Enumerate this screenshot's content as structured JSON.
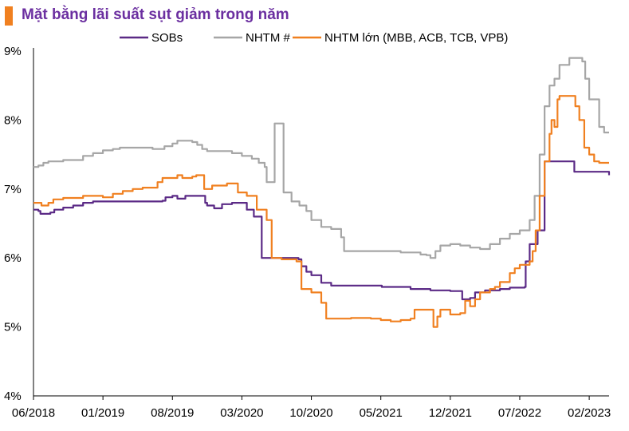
{
  "header": {
    "title": "Mặt bằng lãi suất sụt giảm trong năm",
    "accent_color": "#f08020"
  },
  "chart_data": {
    "type": "line",
    "title": "Mặt bằng lãi suất sụt giảm trong năm",
    "xlabel": "",
    "ylabel": "",
    "ylim": [
      4,
      9
    ],
    "y_ticks": [
      "4%",
      "5%",
      "6%",
      "7%",
      "8%",
      "9%"
    ],
    "x_ticks": [
      "06/2018",
      "01/2019",
      "08/2019",
      "03/2020",
      "10/2020",
      "05/2021",
      "12/2021",
      "07/2022",
      "02/2023"
    ],
    "x_range": [
      0,
      58
    ],
    "grid": false,
    "legend_position": "top",
    "series": [
      {
        "name": "SOBs",
        "color": "#5b2a86",
        "points": [
          [
            0,
            6.7
          ],
          [
            0.5,
            6.68
          ],
          [
            0.7,
            6.64
          ],
          [
            1.7,
            6.66
          ],
          [
            2.1,
            6.7
          ],
          [
            3.0,
            6.73
          ],
          [
            4.0,
            6.76
          ],
          [
            5.0,
            6.8
          ],
          [
            6.0,
            6.82
          ],
          [
            7.0,
            6.82
          ],
          [
            10.0,
            6.82
          ],
          [
            13.0,
            6.83
          ],
          [
            13.3,
            6.88
          ],
          [
            14.0,
            6.9
          ],
          [
            14.5,
            6.86
          ],
          [
            15.3,
            6.9
          ],
          [
            16.8,
            6.9
          ],
          [
            17.3,
            6.8
          ],
          [
            17.5,
            6.76
          ],
          [
            18.2,
            6.72
          ],
          [
            19.0,
            6.78
          ],
          [
            20.0,
            6.8
          ],
          [
            21.0,
            6.8
          ],
          [
            21.5,
            6.7
          ],
          [
            22.2,
            6.6
          ],
          [
            23.0,
            6.0
          ],
          [
            25.6,
            6.0
          ],
          [
            26.7,
            5.98
          ],
          [
            27.0,
            5.88
          ],
          [
            27.5,
            5.8
          ],
          [
            28.0,
            5.75
          ],
          [
            29.0,
            5.64
          ],
          [
            30.0,
            5.6
          ],
          [
            33.0,
            5.6
          ],
          [
            35.0,
            5.6
          ],
          [
            35.1,
            5.58
          ],
          [
            38.0,
            5.55
          ],
          [
            40.0,
            5.53
          ],
          [
            42.0,
            5.52
          ],
          [
            43.0,
            5.52
          ],
          [
            43.2,
            5.4
          ],
          [
            44.0,
            5.42
          ],
          [
            44.5,
            5.5
          ],
          [
            45.5,
            5.53
          ],
          [
            47.0,
            5.55
          ],
          [
            48.0,
            5.57
          ],
          [
            49.5,
            5.58
          ],
          [
            49.6,
            5.95
          ],
          [
            50.0,
            6.2
          ],
          [
            50.8,
            6.4
          ],
          [
            51.5,
            7.4
          ],
          [
            54.0,
            7.4
          ],
          [
            54.5,
            7.25
          ],
          [
            58,
            7.2
          ]
        ]
      },
      {
        "name": "NHTM #",
        "color": "#a6a6a6",
        "points": [
          [
            0,
            7.32
          ],
          [
            0.5,
            7.34
          ],
          [
            1.0,
            7.38
          ],
          [
            1.5,
            7.4
          ],
          [
            3.0,
            7.42
          ],
          [
            5.0,
            7.48
          ],
          [
            6.0,
            7.52
          ],
          [
            7.0,
            7.56
          ],
          [
            8.0,
            7.58
          ],
          [
            8.7,
            7.6
          ],
          [
            12.0,
            7.58
          ],
          [
            13.0,
            7.58
          ],
          [
            13.2,
            7.62
          ],
          [
            14.0,
            7.66
          ],
          [
            14.5,
            7.7
          ],
          [
            16.0,
            7.68
          ],
          [
            16.5,
            7.64
          ],
          [
            17.0,
            7.58
          ],
          [
            17.5,
            7.55
          ],
          [
            20.0,
            7.52
          ],
          [
            21.0,
            7.48
          ],
          [
            22.0,
            7.44
          ],
          [
            22.7,
            7.38
          ],
          [
            23.3,
            7.32
          ],
          [
            23.5,
            7.1
          ],
          [
            24.0,
            7.1
          ],
          [
            24.3,
            7.95
          ],
          [
            25.0,
            7.95
          ],
          [
            25.2,
            6.95
          ],
          [
            26.0,
            6.82
          ],
          [
            26.8,
            6.76
          ],
          [
            27.5,
            6.68
          ],
          [
            28.0,
            6.55
          ],
          [
            29.0,
            6.45
          ],
          [
            30.0,
            6.42
          ],
          [
            31.0,
            6.3
          ],
          [
            31.3,
            6.1
          ],
          [
            33.0,
            6.1
          ],
          [
            35.0,
            6.1
          ],
          [
            37.0,
            6.08
          ],
          [
            39.0,
            6.05
          ],
          [
            39.6,
            6.04
          ],
          [
            40.0,
            6.0
          ],
          [
            40.5,
            6.1
          ],
          [
            41.0,
            6.18
          ],
          [
            42.0,
            6.2
          ],
          [
            43.0,
            6.18
          ],
          [
            44.0,
            6.15
          ],
          [
            45.0,
            6.13
          ],
          [
            46.0,
            6.2
          ],
          [
            47.0,
            6.28
          ],
          [
            48.0,
            6.35
          ],
          [
            49.0,
            6.4
          ],
          [
            50.0,
            6.55
          ],
          [
            50.5,
            6.9
          ],
          [
            51.0,
            7.5
          ],
          [
            51.5,
            8.2
          ],
          [
            52.0,
            8.5
          ],
          [
            52.5,
            8.6
          ],
          [
            53.0,
            8.8
          ],
          [
            54.0,
            8.9
          ],
          [
            55.0,
            8.9
          ],
          [
            55.3,
            8.85
          ],
          [
            55.6,
            8.6
          ],
          [
            56.0,
            8.3
          ],
          [
            57.0,
            7.9
          ],
          [
            57.5,
            7.82
          ],
          [
            58,
            7.82
          ]
        ]
      },
      {
        "name": "NHTM lớn (MBB, ACB, TCB, VPB)",
        "color": "#f08020",
        "points": [
          [
            0,
            6.8
          ],
          [
            0.6,
            6.8
          ],
          [
            0.8,
            6.76
          ],
          [
            1.5,
            6.8
          ],
          [
            2.0,
            6.85
          ],
          [
            3.0,
            6.87
          ],
          [
            5.0,
            6.9
          ],
          [
            6.0,
            6.9
          ],
          [
            7.0,
            6.88
          ],
          [
            8.0,
            6.93
          ],
          [
            9.0,
            6.97
          ],
          [
            10.0,
            7.0
          ],
          [
            11.0,
            7.02
          ],
          [
            12.5,
            7.1
          ],
          [
            13.0,
            7.16
          ],
          [
            14.5,
            7.2
          ],
          [
            15.0,
            7.16
          ],
          [
            16.0,
            7.18
          ],
          [
            16.4,
            7.2
          ],
          [
            17.2,
            7.0
          ],
          [
            18.0,
            7.05
          ],
          [
            19.5,
            7.08
          ],
          [
            20.3,
            7.08
          ],
          [
            20.6,
            6.95
          ],
          [
            21.5,
            6.9
          ],
          [
            22.5,
            6.7
          ],
          [
            23.5,
            6.55
          ],
          [
            24.0,
            6.0
          ],
          [
            25.0,
            5.98
          ],
          [
            26.5,
            5.95
          ],
          [
            27.0,
            5.55
          ],
          [
            28.0,
            5.5
          ],
          [
            29.0,
            5.35
          ],
          [
            29.5,
            5.12
          ],
          [
            31.0,
            5.12
          ],
          [
            32.0,
            5.13
          ],
          [
            34.0,
            5.12
          ],
          [
            35.0,
            5.1
          ],
          [
            36.0,
            5.08
          ],
          [
            37.0,
            5.1
          ],
          [
            38.0,
            5.12
          ],
          [
            38.4,
            5.25
          ],
          [
            40.0,
            5.25
          ],
          [
            40.3,
            5.0
          ],
          [
            40.7,
            5.15
          ],
          [
            41.0,
            5.25
          ],
          [
            42.0,
            5.18
          ],
          [
            43.0,
            5.2
          ],
          [
            43.5,
            5.38
          ],
          [
            44.0,
            5.3
          ],
          [
            44.5,
            5.4
          ],
          [
            45.0,
            5.5
          ],
          [
            46.0,
            5.55
          ],
          [
            46.5,
            5.58
          ],
          [
            47.0,
            5.65
          ],
          [
            48.0,
            5.78
          ],
          [
            48.5,
            5.85
          ],
          [
            49.0,
            5.9
          ],
          [
            50.0,
            5.95
          ],
          [
            50.3,
            6.1
          ],
          [
            50.6,
            6.4
          ],
          [
            51.0,
            6.9
          ],
          [
            51.5,
            7.4
          ],
          [
            52.0,
            7.8
          ],
          [
            52.2,
            8.0
          ],
          [
            52.5,
            7.9
          ],
          [
            52.8,
            8.3
          ],
          [
            53.0,
            8.35
          ],
          [
            54.3,
            8.35
          ],
          [
            54.6,
            8.2
          ],
          [
            55.0,
            8.0
          ],
          [
            55.5,
            7.6
          ],
          [
            56.0,
            7.5
          ],
          [
            56.5,
            7.4
          ],
          [
            57.0,
            7.38
          ],
          [
            58,
            7.38
          ]
        ]
      }
    ]
  }
}
